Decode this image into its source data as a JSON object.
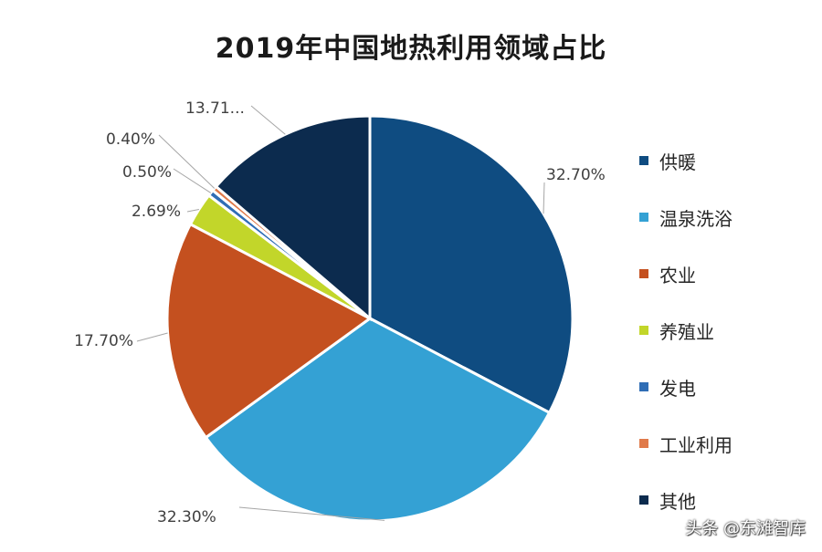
{
  "chart_data": {
    "type": "pie",
    "title": "2019年中国地热利用领域占比",
    "slices": [
      {
        "name": "供暖",
        "value": 32.7,
        "label": "32.70%",
        "color": "#0f4c81"
      },
      {
        "name": "温泉洗浴",
        "value": 32.3,
        "label": "32.30%",
        "color": "#34a1d4"
      },
      {
        "name": "农业",
        "value": 17.7,
        "label": "17.70%",
        "color": "#c4501f"
      },
      {
        "name": "养殖业",
        "value": 2.69,
        "label": "2.69%",
        "color": "#c2d62a"
      },
      {
        "name": "发电",
        "value": 0.5,
        "label": "0.50%",
        "color": "#2f6db5"
      },
      {
        "name": "工业利用",
        "value": 0.4,
        "label": "0.40%",
        "color": "#e07a4a"
      },
      {
        "name": "其他",
        "value": 13.71,
        "label": "13.71...",
        "color": "#0c2b4e"
      }
    ],
    "legend_position": "right"
  },
  "watermark": "头条 @东滩智库"
}
